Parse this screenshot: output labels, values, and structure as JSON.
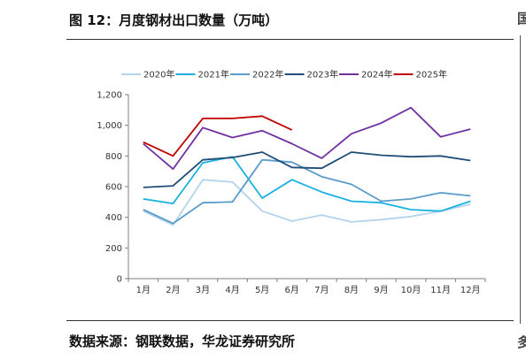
{
  "figure": {
    "title": "图 12：月度钢材出口数量（万吨）",
    "source": "数据来源：钢联数据，华龙证券研究所",
    "edge_glyph_top": "国",
    "edge_glyph_bottom": "多"
  },
  "chart_data": {
    "type": "line",
    "title": "",
    "xlabel": "",
    "ylabel": "",
    "categories": [
      "1月",
      "2月",
      "3月",
      "4月",
      "5月",
      "6月",
      "7月",
      "8月",
      "9月",
      "10月",
      "11月",
      "12月"
    ],
    "ylim": [
      0,
      1200
    ],
    "yticks": [
      0,
      200,
      400,
      600,
      800,
      1000,
      1200
    ],
    "ytick_labels": [
      "0",
      "200",
      "400",
      "600",
      "800",
      "1,000",
      "1,200"
    ],
    "grid": false,
    "legend_position": "top",
    "series": [
      {
        "name": "2020年",
        "color": "#b4d3ec",
        "values": [
          440,
          350,
          645,
          630,
          440,
          375,
          415,
          370,
          385,
          405,
          440,
          485
        ]
      },
      {
        "name": "2021年",
        "color": "#1ab1e2",
        "values": [
          520,
          490,
          755,
          795,
          525,
          645,
          565,
          505,
          495,
          450,
          440,
          505
        ]
      },
      {
        "name": "2022年",
        "color": "#5b9cca",
        "values": [
          450,
          360,
          495,
          500,
          775,
          760,
          665,
          615,
          505,
          520,
          560,
          540
        ]
      },
      {
        "name": "2023年",
        "color": "#1f4e79",
        "values": [
          595,
          605,
          775,
          790,
          825,
          725,
          720,
          825,
          805,
          795,
          800,
          770
        ]
      },
      {
        "name": "2024年",
        "color": "#7030a0",
        "values": [
          880,
          715,
          985,
          920,
          965,
          880,
          785,
          945,
          1015,
          1115,
          925,
          975
        ]
      },
      {
        "name": "2025年",
        "color": "#c00000",
        "values": [
          890,
          800,
          1045,
          1045,
          1060,
          970,
          null,
          null,
          null,
          null,
          null,
          null
        ]
      }
    ]
  }
}
